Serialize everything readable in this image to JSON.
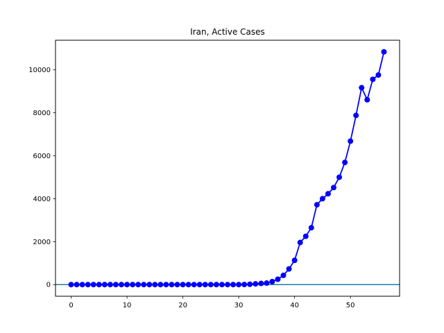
{
  "chart_data": {
    "type": "line",
    "title": "Iran, Active Cases",
    "xlabel": "",
    "ylabel": "",
    "xlim": [
      -2.8,
      58.8
    ],
    "ylim": [
      -542,
      11380
    ],
    "xticks": [
      0,
      10,
      20,
      30,
      40,
      50
    ],
    "yticks": [
      0,
      2000,
      4000,
      6000,
      8000,
      10000
    ],
    "grid": false,
    "baseline": 0,
    "colors": {
      "series": "#0000ff",
      "baseline": "#1f77b4"
    },
    "series": [
      {
        "x": [
          0,
          1,
          2,
          3,
          4,
          5,
          6,
          7,
          8,
          9,
          10,
          11,
          12,
          13,
          14,
          15,
          16,
          17,
          18,
          19,
          20,
          21,
          22,
          23,
          24,
          25,
          26,
          27,
          28,
          29,
          30,
          31,
          32,
          33,
          34,
          35,
          36,
          37,
          38,
          39,
          40,
          41,
          42,
          43,
          44,
          45,
          46,
          47,
          48,
          49,
          50,
          51,
          52,
          53,
          54,
          55,
          56
        ],
        "values": [
          0,
          0,
          0,
          0,
          0,
          0,
          0,
          0,
          0,
          0,
          0,
          0,
          0,
          0,
          0,
          0,
          0,
          0,
          0,
          0,
          0,
          0,
          0,
          0,
          0,
          0,
          0,
          0,
          0,
          0,
          0,
          5,
          15,
          35,
          55,
          70,
          140,
          250,
          430,
          730,
          1130,
          1960,
          2250,
          2650,
          3720,
          4000,
          4230,
          4520,
          5000,
          5690,
          6680,
          7880,
          9170,
          8610,
          9560,
          9760,
          10840
        ]
      }
    ]
  }
}
